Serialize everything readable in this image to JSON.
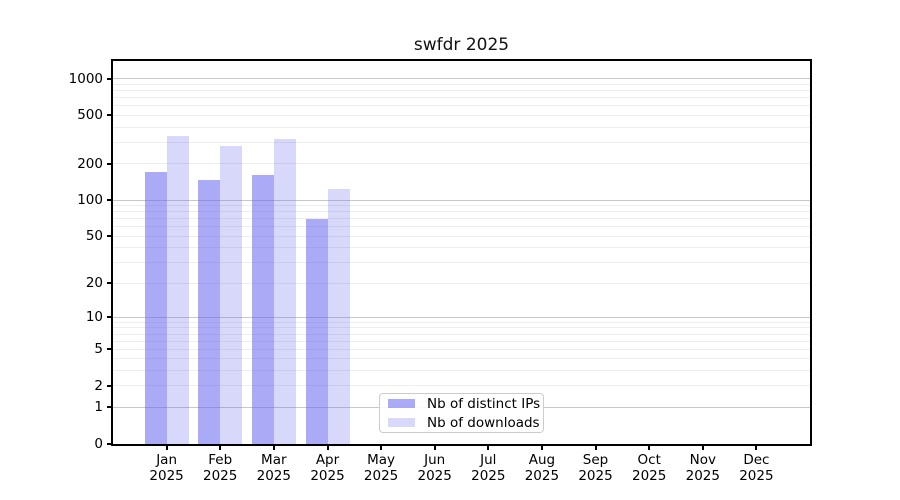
{
  "title": "swfdr 2025",
  "legend": {
    "items": [
      {
        "label": "Nb of distinct IPs",
        "color": "rgba(100,100,240,0.55)"
      },
      {
        "label": "Nb of downloads",
        "color": "rgba(100,100,240,0.25)"
      }
    ],
    "position": "lower center"
  },
  "colors": {
    "bar_base": "#6464f0",
    "grid_major": "#c8c8c8",
    "grid_minor": "#ededed",
    "spine": "#000000",
    "background": "#ffffff"
  },
  "chart_data": {
    "type": "bar",
    "title": "swfdr 2025",
    "categories": [
      "Jan 2025",
      "Feb 2025",
      "Mar 2025",
      "Apr 2025",
      "May 2025",
      "Jun 2025",
      "Jul 2025",
      "Aug 2025",
      "Sep 2025",
      "Oct 2025",
      "Nov 2025",
      "Dec 2025"
    ],
    "series": [
      {
        "name": "Nb of distinct IPs",
        "color": "rgba(100,100,240,0.55)",
        "values": [
          170,
          148,
          160,
          70,
          null,
          null,
          null,
          null,
          null,
          null,
          null,
          null
        ]
      },
      {
        "name": "Nb of downloads",
        "color": "rgba(100,100,240,0.25)",
        "values": [
          340,
          280,
          320,
          123,
          null,
          null,
          null,
          null,
          null,
          null,
          null,
          null
        ]
      }
    ],
    "xlabel": "",
    "ylabel": "",
    "yscale": "log1p",
    "yticks": [
      0,
      1,
      2,
      5,
      10,
      20,
      50,
      100,
      200,
      500,
      1000
    ],
    "ylim": [
      0,
      1400
    ],
    "grid": "horizontal, major and minor",
    "legend_position": "lower center"
  }
}
